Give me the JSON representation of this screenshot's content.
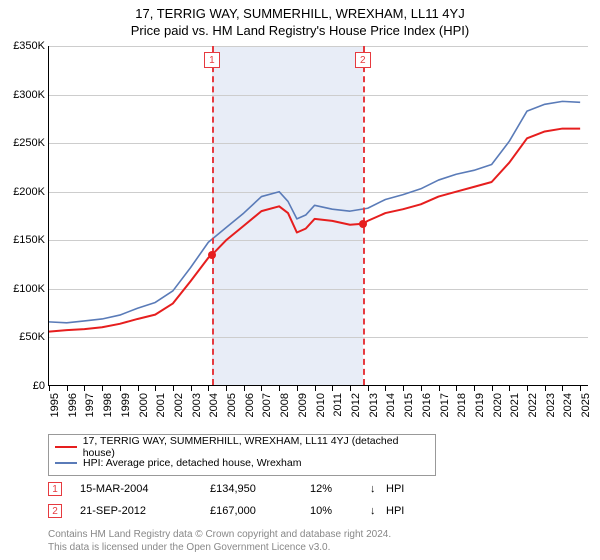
{
  "title": "17, TERRIG WAY, SUMMERHILL, WREXHAM, LL11 4YJ",
  "subtitle": "Price paid vs. HM Land Registry's House Price Index (HPI)",
  "chart": {
    "type": "line",
    "plot_bg": "#ffffff",
    "grid_color": "#cdcdcd",
    "axis_color": "#000000",
    "label_fontsize": 11,
    "x_min": 1995,
    "x_max": 2025.5,
    "x_ticks": [
      1995,
      1996,
      1997,
      1998,
      1999,
      2000,
      2001,
      2002,
      2003,
      2004,
      2005,
      2006,
      2007,
      2008,
      2009,
      2010,
      2011,
      2012,
      2013,
      2014,
      2015,
      2016,
      2017,
      2018,
      2019,
      2020,
      2021,
      2022,
      2023,
      2024,
      2025
    ],
    "y_min": 0,
    "y_max": 350000,
    "y_ticks": [
      0,
      50000,
      100000,
      150000,
      200000,
      250000,
      300000,
      350000
    ],
    "y_tick_labels": [
      "£0",
      "£50K",
      "£100K",
      "£150K",
      "£200K",
      "£250K",
      "£300K",
      "£350K"
    ],
    "shaded_band": {
      "start": 2004.2,
      "end": 2012.72,
      "color": "#e8edf7"
    },
    "event_lines": [
      {
        "x": 2004.2,
        "label": "1",
        "color": "#e63a3f"
      },
      {
        "x": 2012.72,
        "label": "2",
        "color": "#e63a3f"
      }
    ],
    "series": [
      {
        "name": "price_paid",
        "color": "#e61e1e",
        "width": 2,
        "data": [
          [
            1995,
            56000
          ],
          [
            1996,
            57500
          ],
          [
            1997,
            58500
          ],
          [
            1998,
            60500
          ],
          [
            1999,
            64000
          ],
          [
            2000,
            69000
          ],
          [
            2001,
            73500
          ],
          [
            2002,
            85000
          ],
          [
            2003,
            108000
          ],
          [
            2004,
            132000
          ],
          [
            2004.2,
            134950
          ],
          [
            2005,
            150000
          ],
          [
            2006,
            165000
          ],
          [
            2007,
            180000
          ],
          [
            2008,
            185000
          ],
          [
            2008.5,
            178000
          ],
          [
            2009,
            158000
          ],
          [
            2009.5,
            162000
          ],
          [
            2010,
            172000
          ],
          [
            2011,
            170000
          ],
          [
            2012,
            166000
          ],
          [
            2012.72,
            167000
          ],
          [
            2013,
            170000
          ],
          [
            2014,
            178000
          ],
          [
            2015,
            182000
          ],
          [
            2016,
            187000
          ],
          [
            2017,
            195000
          ],
          [
            2018,
            200000
          ],
          [
            2019,
            205000
          ],
          [
            2020,
            210000
          ],
          [
            2021,
            230000
          ],
          [
            2022,
            255000
          ],
          [
            2023,
            262000
          ],
          [
            2024,
            265000
          ],
          [
            2025,
            265000
          ]
        ]
      },
      {
        "name": "hpi",
        "color": "#5a7bb8",
        "width": 1.6,
        "data": [
          [
            1995,
            66000
          ],
          [
            1996,
            65000
          ],
          [
            1997,
            67000
          ],
          [
            1998,
            69000
          ],
          [
            1999,
            73000
          ],
          [
            2000,
            80000
          ],
          [
            2001,
            86000
          ],
          [
            2002,
            98000
          ],
          [
            2003,
            122000
          ],
          [
            2004,
            148000
          ],
          [
            2005,
            163000
          ],
          [
            2006,
            178000
          ],
          [
            2007,
            195000
          ],
          [
            2008,
            200000
          ],
          [
            2008.5,
            190000
          ],
          [
            2009,
            172000
          ],
          [
            2009.5,
            176000
          ],
          [
            2010,
            186000
          ],
          [
            2011,
            182000
          ],
          [
            2012,
            180000
          ],
          [
            2013,
            183000
          ],
          [
            2014,
            192000
          ],
          [
            2015,
            197000
          ],
          [
            2016,
            203000
          ],
          [
            2017,
            212000
          ],
          [
            2018,
            218000
          ],
          [
            2019,
            222000
          ],
          [
            2020,
            228000
          ],
          [
            2021,
            252000
          ],
          [
            2022,
            283000
          ],
          [
            2023,
            290000
          ],
          [
            2024,
            293000
          ],
          [
            2025,
            292000
          ]
        ]
      }
    ],
    "markers": [
      {
        "x": 2004.2,
        "y": 134950,
        "color": "#e61e1e",
        "size": 8
      },
      {
        "x": 2012.72,
        "y": 167000,
        "color": "#e61e1e",
        "size": 8
      }
    ]
  },
  "legend": {
    "items": [
      {
        "color": "#e61e1e",
        "label": "17, TERRIG WAY, SUMMERHILL, WREXHAM, LL11 4YJ (detached house)"
      },
      {
        "color": "#5a7bb8",
        "label": "HPI: Average price, detached house, Wrexham"
      }
    ]
  },
  "sales": [
    {
      "n": "1",
      "date": "15-MAR-2004",
      "price": "£134,950",
      "pct": "12%",
      "arrow": "↓",
      "tag": "HPI"
    },
    {
      "n": "2",
      "date": "21-SEP-2012",
      "price": "£167,000",
      "pct": "10%",
      "arrow": "↓",
      "tag": "HPI"
    }
  ],
  "attribution": {
    "line1": "Contains HM Land Registry data © Crown copyright and database right 2024.",
    "line2": "This data is licensed under the Open Government Licence v3.0."
  }
}
